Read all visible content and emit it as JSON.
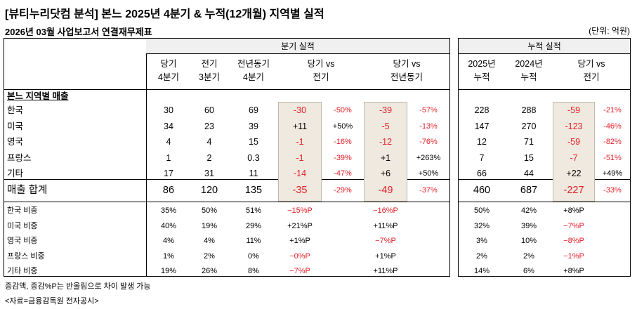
{
  "title": "[뷰티누리닷컴 분석] 본느 2025년 4분기 & 누적(12개월) 지역별 실적",
  "subtitle": "2026년 03월 사업보고서 연결재무제표",
  "unit": "(단위: 억원)",
  "quarter_header": "분기 실적",
  "cumulative_header": "누적 실적",
  "quarter_columns": [
    {
      "line1": "당기",
      "line2": "4분기"
    },
    {
      "line1": "전기",
      "line2": "3분기"
    },
    {
      "line1": "전년동기",
      "line2": "4분기"
    },
    {
      "line1": "당기 vs",
      "line2": "전기"
    },
    {
      "line1": "당기 vs",
      "line2": "전년동기"
    }
  ],
  "cumulative_columns": [
    {
      "line1": "2025년",
      "line2": "누적"
    },
    {
      "line1": "2024년",
      "line2": "누적"
    },
    {
      "line1": "당기 vs",
      "line2": "전기"
    }
  ],
  "section_title": "본느 지역별 매출",
  "rows": [
    {
      "label": "한국",
      "cur": "30",
      "prev": "60",
      "yoy": "69",
      "qoq_diff": "-30",
      "qoq_pct": "-50%",
      "yoy_diff": "-39",
      "yoy_pct": "-57%",
      "cum_cur": "228",
      "cum_prev": "288",
      "cum_diff": "-59",
      "cum_pct": "-21%"
    },
    {
      "label": "미국",
      "cur": "34",
      "prev": "23",
      "yoy": "39",
      "qoq_diff": "+11",
      "qoq_pct": "+50%",
      "yoy_diff": "-5",
      "yoy_pct": "-13%",
      "cum_cur": "147",
      "cum_prev": "270",
      "cum_diff": "-123",
      "cum_pct": "-46%"
    },
    {
      "label": "영국",
      "cur": "4",
      "prev": "4",
      "yoy": "15",
      "qoq_diff": "-1",
      "qoq_pct": "-16%",
      "yoy_diff": "-12",
      "yoy_pct": "-76%",
      "cum_cur": "12",
      "cum_prev": "71",
      "cum_diff": "-59",
      "cum_pct": "-82%"
    },
    {
      "label": "프랑스",
      "cur": "1",
      "prev": "2",
      "yoy": "0.3",
      "qoq_diff": "-1",
      "qoq_pct": "-39%",
      "yoy_diff": "+1",
      "yoy_pct": "+263%",
      "cum_cur": "7",
      "cum_prev": "15",
      "cum_diff": "-7",
      "cum_pct": "-51%"
    },
    {
      "label": "기타",
      "cur": "17",
      "prev": "31",
      "yoy": "11",
      "qoq_diff": "-14",
      "qoq_pct": "-47%",
      "yoy_diff": "+6",
      "yoy_pct": "+50%",
      "cum_cur": "66",
      "cum_prev": "44",
      "cum_diff": "+22",
      "cum_pct": "+49%"
    }
  ],
  "total": {
    "label": "매출 합계",
    "cur": "86",
    "prev": "120",
    "yoy": "135",
    "qoq_diff": "-35",
    "qoq_pct": "-29%",
    "yoy_diff": "-49",
    "yoy_pct": "-37%",
    "cum_cur": "460",
    "cum_prev": "687",
    "cum_diff": "-227",
    "cum_pct": "-33%"
  },
  "ratios": [
    {
      "label": "한국 비중",
      "cur": "35%",
      "prev": "50%",
      "yoy": "51%",
      "qoq": "−15%P",
      "yoyd": "−16%P",
      "cum_cur": "50%",
      "cum_prev": "42%",
      "cum_d": "+8%P"
    },
    {
      "label": "미국 비중",
      "cur": "40%",
      "prev": "19%",
      "yoy": "29%",
      "qoq": "+21%P",
      "yoyd": "+11%P",
      "cum_cur": "32%",
      "cum_prev": "39%",
      "cum_d": "−7%P"
    },
    {
      "label": "영국 비중",
      "cur": "4%",
      "prev": "4%",
      "yoy": "11%",
      "qoq": "+1%P",
      "yoyd": "−7%P",
      "cum_cur": "3%",
      "cum_prev": "10%",
      "cum_d": "−8%P"
    },
    {
      "label": "프랑스 비중",
      "cur": "1%",
      "prev": "2%",
      "yoy": "0%",
      "qoq": "−0%P",
      "yoyd": "+1%P",
      "cum_cur": "2%",
      "cum_prev": "2%",
      "cum_d": "−1%P"
    },
    {
      "label": "기타 비중",
      "cur": "19%",
      "prev": "26%",
      "yoy": "8%",
      "qoq": "−7%P",
      "yoyd": "+11%P",
      "cum_cur": "14%",
      "cum_prev": "6%",
      "cum_d": "+8%P"
    }
  ],
  "footnote1": "증감액, 증감%P는 반올림으로 차이 발생 가능",
  "footnote2": "<자료=금융감독원 전자공시>",
  "colors": {
    "negative": "#e5202a",
    "shade": "#efe9df",
    "header_bg": "#f0f0f0"
  }
}
